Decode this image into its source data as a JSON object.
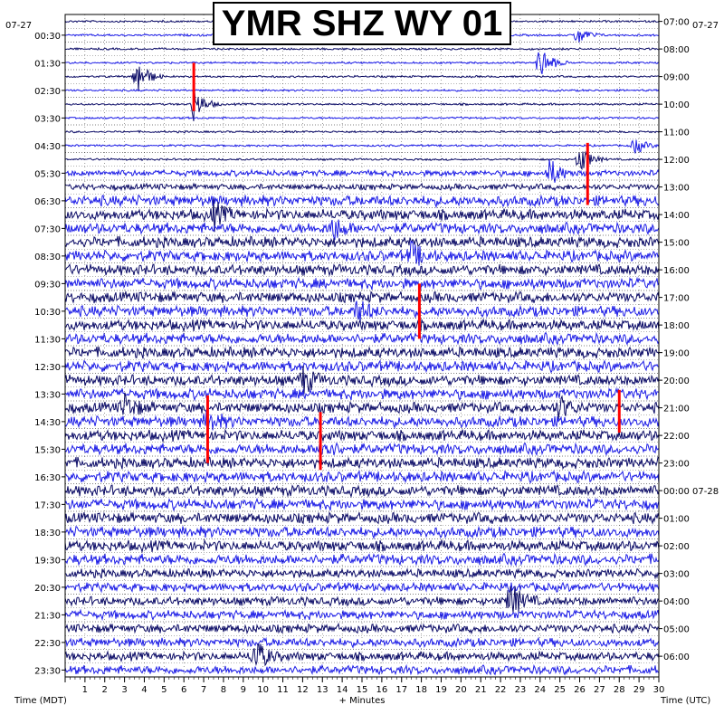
{
  "title": "YMR SHZ WY 01",
  "date_left": "07-27",
  "date_right": "07-27",
  "date_rollover": "07-28",
  "x_label": "+ Minutes",
  "left_axis_label": "Time (MDT)",
  "right_axis_label": "Time (UTC)",
  "colors": {
    "trace_dark": "#0b0b66",
    "trace_blue": "#1c1ce6",
    "event_marker": "#ff0000",
    "grid": "#000000",
    "background": "#ffffff"
  },
  "chart_data": {
    "type": "line",
    "description_of_display": "helicorder",
    "x_unit": "minutes",
    "x_range": [
      0,
      30
    ],
    "x_ticks": [
      "1",
      "2",
      "3",
      "4",
      "5",
      "6",
      "7",
      "8",
      "9",
      "10",
      "11",
      "12",
      "13",
      "14",
      "15",
      "16",
      "17",
      "18",
      "19",
      "20",
      "21",
      "22",
      "23",
      "24",
      "25",
      "26",
      "27",
      "28",
      "29",
      "30"
    ],
    "rows": 48,
    "minutes_per_row": 30,
    "left_time_ticks": [
      "00:30",
      "01:30",
      "02:30",
      "03:30",
      "04:30",
      "05:30",
      "06:30",
      "07:30",
      "08:30",
      "09:30",
      "10:30",
      "11:30",
      "12:30",
      "13:30",
      "14:30",
      "15:30",
      "16:30",
      "17:30",
      "18:30",
      "19:30",
      "20:30",
      "21:30",
      "22:30",
      "23:30"
    ],
    "right_time_ticks": [
      "07:00",
      "08:00",
      "09:00",
      "10:00",
      "11:00",
      "12:00",
      "13:00",
      "14:00",
      "15:00",
      "16:00",
      "17:00",
      "18:00",
      "19:00",
      "20:00",
      "21:00",
      "22:00",
      "23:00",
      "00:00",
      "01:00",
      "02:00",
      "03:00",
      "04:00",
      "05:00",
      "06:00"
    ],
    "bursts": [
      {
        "row": 4,
        "minute": 3.6,
        "amp": 3.2
      },
      {
        "row": 3,
        "minute": 24.0,
        "amp": 2.8
      },
      {
        "row": 1,
        "minute": 25.9,
        "amp": 1.5
      },
      {
        "row": 6,
        "minute": 6.5,
        "amp": 2.5
      },
      {
        "row": 9,
        "minute": 28.8,
        "amp": 1.3
      },
      {
        "row": 10,
        "minute": 26.0,
        "amp": 2.2
      },
      {
        "row": 11,
        "minute": 24.5,
        "amp": 2.0
      },
      {
        "row": 14,
        "minute": 7.5,
        "amp": 1.8
      },
      {
        "row": 15,
        "minute": 13.5,
        "amp": 1.8
      },
      {
        "row": 17,
        "minute": 17.5,
        "amp": 1.8
      },
      {
        "row": 21,
        "minute": 14.8,
        "amp": 1.6
      },
      {
        "row": 26,
        "minute": 12.0,
        "amp": 1.9
      },
      {
        "row": 28,
        "minute": 3.0,
        "amp": 1.8
      },
      {
        "row": 28,
        "minute": 25.0,
        "amp": 1.6
      },
      {
        "row": 29,
        "minute": 7.2,
        "amp": 1.7
      },
      {
        "row": 31,
        "minute": 13.0,
        "amp": 1.6
      },
      {
        "row": 42,
        "minute": 22.5,
        "amp": 2.8
      },
      {
        "row": 46,
        "minute": 9.6,
        "amp": 2.6
      }
    ],
    "event_markers": [
      {
        "row_start": 3.5,
        "row_end": 7.0,
        "minute": 6.5
      },
      {
        "row_start": 9.3,
        "row_end": 13.8,
        "minute": 26.4
      },
      {
        "row_start": 19.5,
        "row_end": 23.5,
        "minute": 17.9
      },
      {
        "row_start": 27.2,
        "row_end": 30.3,
        "minute": 28.0
      },
      {
        "row_start": 27.6,
        "row_end": 32.5,
        "minute": 7.2
      },
      {
        "row_start": 28.8,
        "row_end": 33.0,
        "minute": 12.9
      }
    ]
  }
}
